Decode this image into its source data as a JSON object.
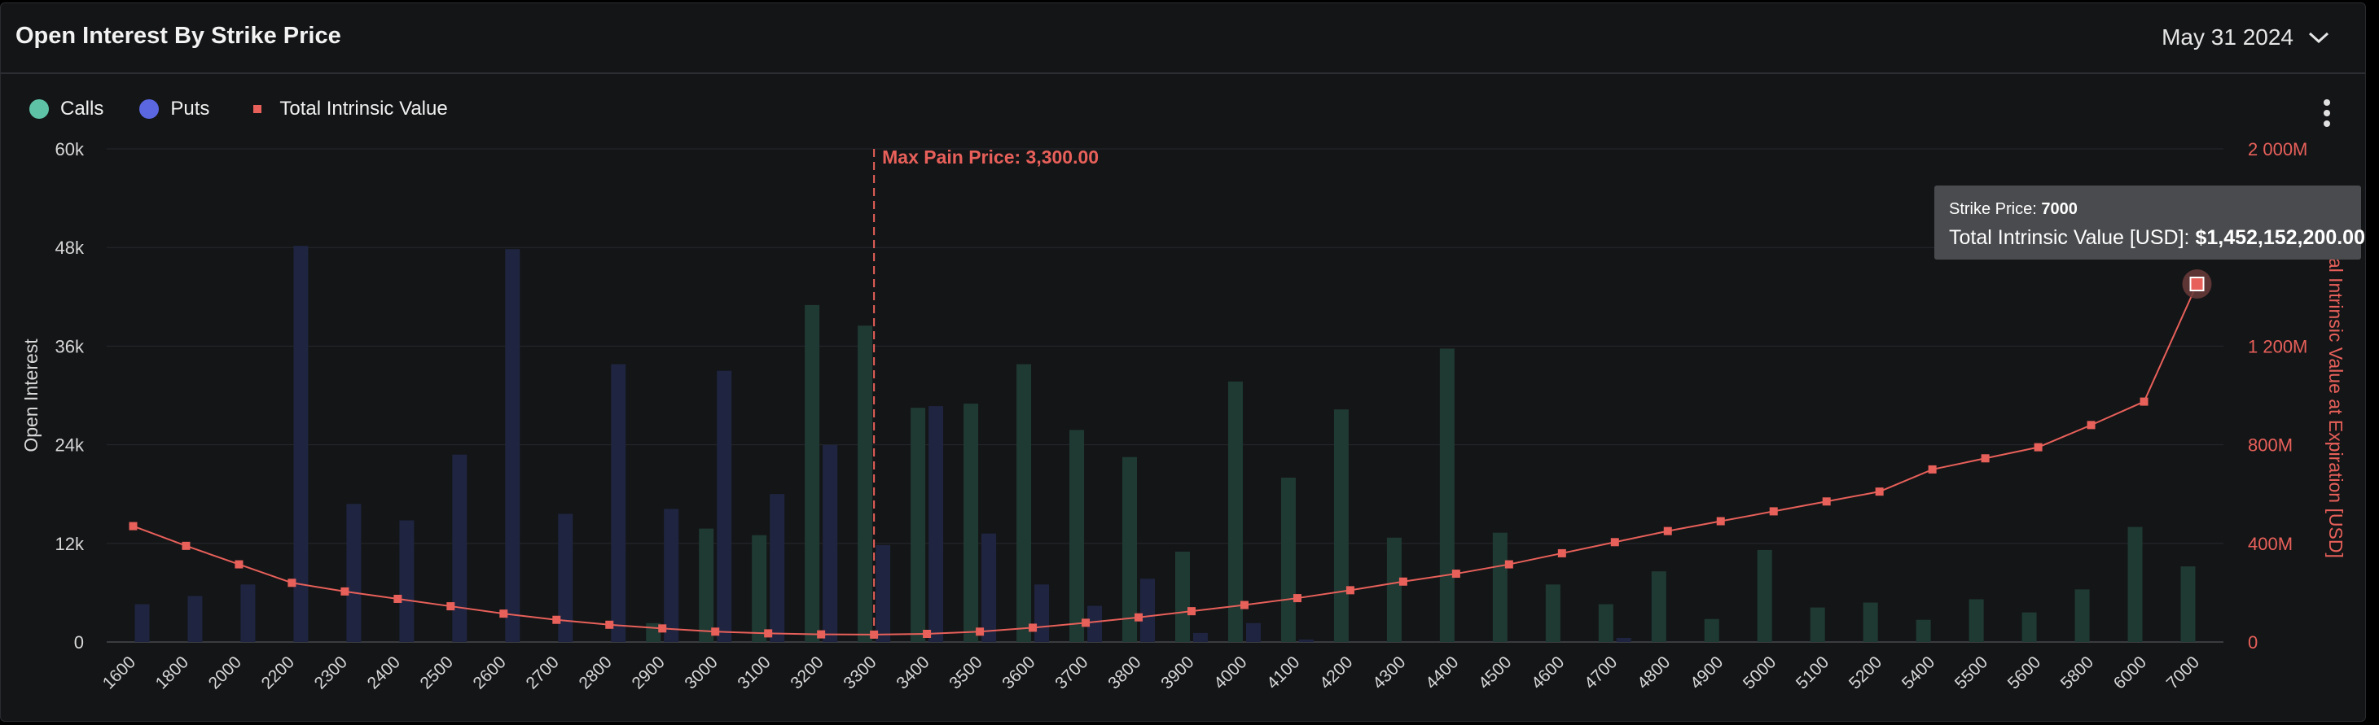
{
  "header": {
    "title": "Open Interest By Strike Price",
    "date": "May 31 2024"
  },
  "legend": [
    {
      "label": "Calls",
      "color": "#5ec3a6"
    },
    {
      "label": "Puts",
      "color": "#5b67e0"
    },
    {
      "label": "Total Intrinsic Value",
      "color": "#e8605a"
    }
  ],
  "tooltip": {
    "strike_label": "Strike Price:",
    "strike_value": "7000",
    "value_label": "Total Intrinsic Value [USD]:",
    "value": "$1,452,152,200.00"
  },
  "chart_data": {
    "type": "bar",
    "categories": [
      "1600",
      "1800",
      "2000",
      "2200",
      "2300",
      "2400",
      "2500",
      "2600",
      "2700",
      "2800",
      "2900",
      "3000",
      "3100",
      "3200",
      "3300",
      "3400",
      "3500",
      "3600",
      "3700",
      "3800",
      "3900",
      "4000",
      "4100",
      "4200",
      "4300",
      "4400",
      "4500",
      "4600",
      "4700",
      "4800",
      "4900",
      "5000",
      "5100",
      "5200",
      "5400",
      "5500",
      "5600",
      "5800",
      "6000",
      "7000"
    ],
    "series": [
      {
        "name": "Calls",
        "axis": "left",
        "color": "#1f3a33",
        "values": [
          0,
          0,
          0,
          0,
          0,
          0,
          0,
          0,
          0,
          0,
          2300,
          13800,
          13000,
          41000,
          38500,
          28500,
          29000,
          33800,
          25800,
          22500,
          11000,
          31700,
          20000,
          28300,
          12700,
          35700,
          13300,
          7000,
          4600,
          8600,
          2800,
          11200,
          4200,
          4800,
          2700,
          5200,
          3600,
          6400,
          14000,
          9200
        ]
      },
      {
        "name": "Puts",
        "axis": "left",
        "color": "#1f2540",
        "values": [
          4600,
          5600,
          7000,
          48200,
          16800,
          14800,
          22800,
          47800,
          15600,
          33800,
          16200,
          33000,
          18000,
          24000,
          11800,
          28700,
          13200,
          7000,
          4400,
          7700,
          1100,
          2300,
          300,
          0,
          0,
          0,
          0,
          0,
          500,
          0,
          0,
          0,
          0,
          0,
          0,
          0,
          0,
          0,
          0,
          0
        ]
      },
      {
        "name": "Total Intrinsic Value",
        "axis": "right",
        "type": "line",
        "color": "#e8605a",
        "values": [
          470000000,
          390000000,
          315000000,
          240000000,
          205000000,
          175000000,
          145000000,
          115000000,
          90000000,
          70000000,
          55000000,
          42000000,
          35000000,
          31000000,
          30000000,
          33000000,
          42000000,
          58000000,
          78000000,
          100000000,
          125000000,
          150000000,
          178000000,
          210000000,
          245000000,
          277000000,
          315000000,
          360000000,
          405000000,
          450000000,
          490000000,
          530000000,
          570000000,
          610000000,
          700000000,
          745000000,
          790000000,
          880000000,
          975000000,
          1452152200
        ]
      }
    ],
    "y_left": {
      "label": "Open Interest",
      "ticks": [
        "0",
        "12k",
        "24k",
        "36k",
        "48k",
        "60k"
      ],
      "range": [
        0,
        60000
      ]
    },
    "y_right": {
      "label": "Total Intrinsic Value at Expiration [USD]",
      "ticks": [
        "0",
        "400M",
        "800M",
        "1 200M",
        "2 000M"
      ],
      "tick_values": [
        0,
        400000000,
        800000000,
        1200000000,
        2000000000
      ],
      "range": [
        0,
        2000000000
      ]
    },
    "annotation": {
      "label": "Max Pain Price: 3,300.00",
      "category": "3300",
      "color": "#e8605a"
    },
    "grid": true,
    "legend_position": "top-left"
  }
}
